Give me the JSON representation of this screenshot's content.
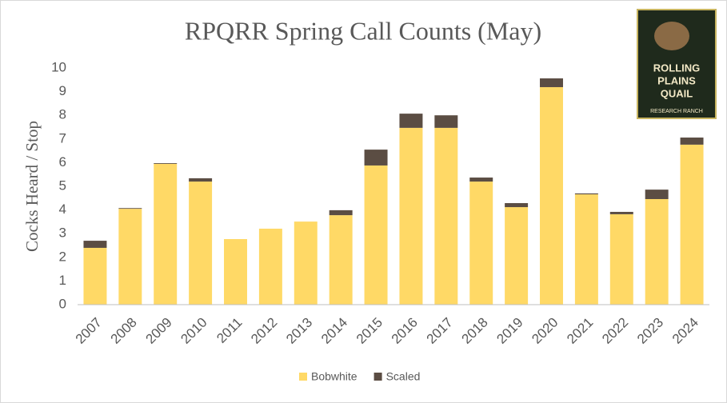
{
  "chart_data": {
    "type": "stacked_bar",
    "title": "RPQRR Spring Call Counts (May)",
    "y_label": "Cocks Heard / Stop",
    "categories": [
      "2007",
      "2008",
      "2009",
      "2010",
      "2011",
      "2012",
      "2013",
      "2014",
      "2015",
      "2016",
      "2017",
      "2018",
      "2019",
      "2020",
      "2021",
      "2022",
      "2023",
      "2024"
    ],
    "series": [
      {
        "name": "Bobwhite",
        "color": "#ffd966",
        "values": [
          2.4,
          4.05,
          5.95,
          5.2,
          2.77,
          3.21,
          3.51,
          3.78,
          5.88,
          7.47,
          7.47,
          5.2,
          4.12,
          9.19,
          4.66,
          3.82,
          4.46,
          6.76
        ]
      },
      {
        "name": "Scaled",
        "color": "#5b4d43",
        "values": [
          0.3,
          0.03,
          0.03,
          0.14,
          0,
          0,
          0,
          0.21,
          0.67,
          0.6,
          0.53,
          0.17,
          0.17,
          0.37,
          0.04,
          0.1,
          0.4,
          0.3
        ]
      }
    ],
    "ylim": [
      0,
      10
    ],
    "yticks": [
      0,
      1,
      2,
      3,
      4,
      5,
      6,
      7,
      8,
      9,
      10
    ],
    "legend": "bottom",
    "logo_text": [
      "ROLLING",
      "PLAINS",
      "QUAIL",
      "RESEARCH RANCH"
    ]
  }
}
